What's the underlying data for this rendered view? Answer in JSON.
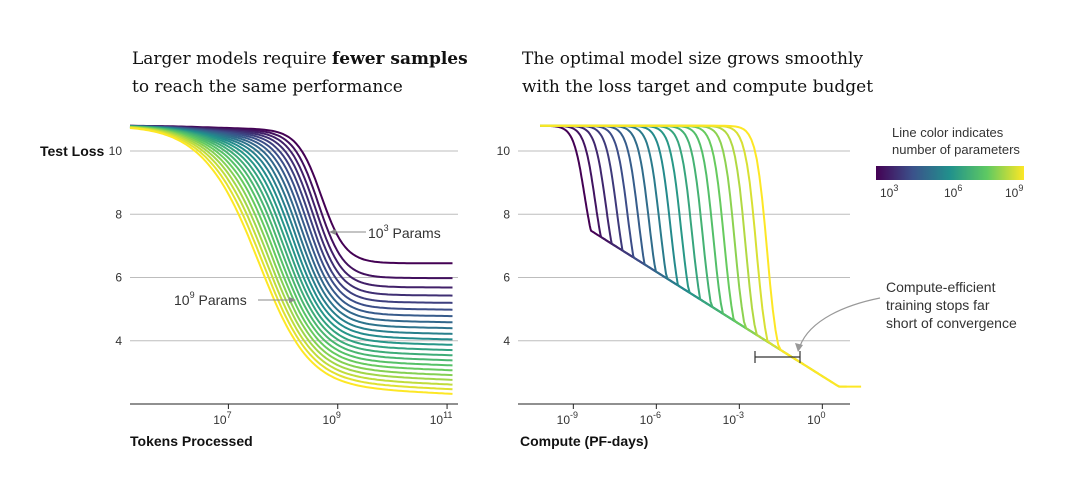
{
  "colors": {
    "gridline": "#bdbdbd",
    "axis": "#222222",
    "annotation_arrow": "#888888",
    "cmap": [
      "#440154",
      "#3b528b",
      "#21918c",
      "#5ec962",
      "#fde725"
    ]
  },
  "legend": {
    "title_line1": "Line color indicates",
    "title_line2": "number of parameters",
    "ticks": [
      {
        "base": "10",
        "exp": "3"
      },
      {
        "base": "10",
        "exp": "6"
      },
      {
        "base": "10",
        "exp": "9"
      }
    ]
  },
  "chart_data": [
    {
      "type": "line",
      "title_prefix": "Larger models require ",
      "title_bold": "fewer samples",
      "title_line2": "to reach the same performance",
      "xlabel": "Tokens Processed",
      "ylabel": "Test Loss",
      "x_scale": "log",
      "xlim_log10": [
        5.2,
        11.2
      ],
      "ylim": [
        2.0,
        10.9
      ],
      "yticks": [
        "10",
        "8",
        "6",
        "4"
      ],
      "xticks": [
        {
          "base": "10",
          "exp": "7"
        },
        {
          "base": "10",
          "exp": "9"
        },
        {
          "base": "10",
          "exp": "11"
        }
      ],
      "grid": true,
      "series_count": 22,
      "series_rule": "one curve per model size (10^3 to 10^9 params); start loss 10.8, plateau/final loss decreasing with size",
      "final_loss_range": [
        6.45,
        2.55
      ],
      "knee_log10_range": [
        8.7,
        7.6
      ],
      "annotations": [
        {
          "text_base": "10",
          "text_exp": "3",
          "text_rest": " Params",
          "points_to": "smallest model curve"
        },
        {
          "text_base": "10",
          "text_exp": "9",
          "text_rest": " Params",
          "points_to": "largest model curve"
        }
      ]
    },
    {
      "type": "line",
      "title_line1": "The optimal model size grows smoothly",
      "title_line2": "with the loss target and compute budget",
      "xlabel": "Compute (PF-days)",
      "x_scale": "log",
      "xlim_log10": [
        -11.0,
        1.0
      ],
      "ylim": [
        2.0,
        10.9
      ],
      "yticks": [
        "10",
        "8",
        "6",
        "4"
      ],
      "xticks": [
        {
          "base": "10",
          "exp": "-9"
        },
        {
          "base": "10",
          "exp": "-6"
        },
        {
          "base": "10",
          "exp": "-3"
        },
        {
          "base": "10",
          "exp": "0"
        }
      ],
      "grid": true,
      "series_count": 18,
      "series_rule": "one curve per model size; drop point shifts right with size; envelope approaches 2.5 at 10^0.6",
      "drop_log10_range": [
        -8.6,
        -2.0
      ],
      "annotations": [
        {
          "line1": "Compute-efficient",
          "line2": "training stops far",
          "line3": "short of convergence",
          "points_to": "bracket near loss 3.4"
        }
      ]
    }
  ]
}
